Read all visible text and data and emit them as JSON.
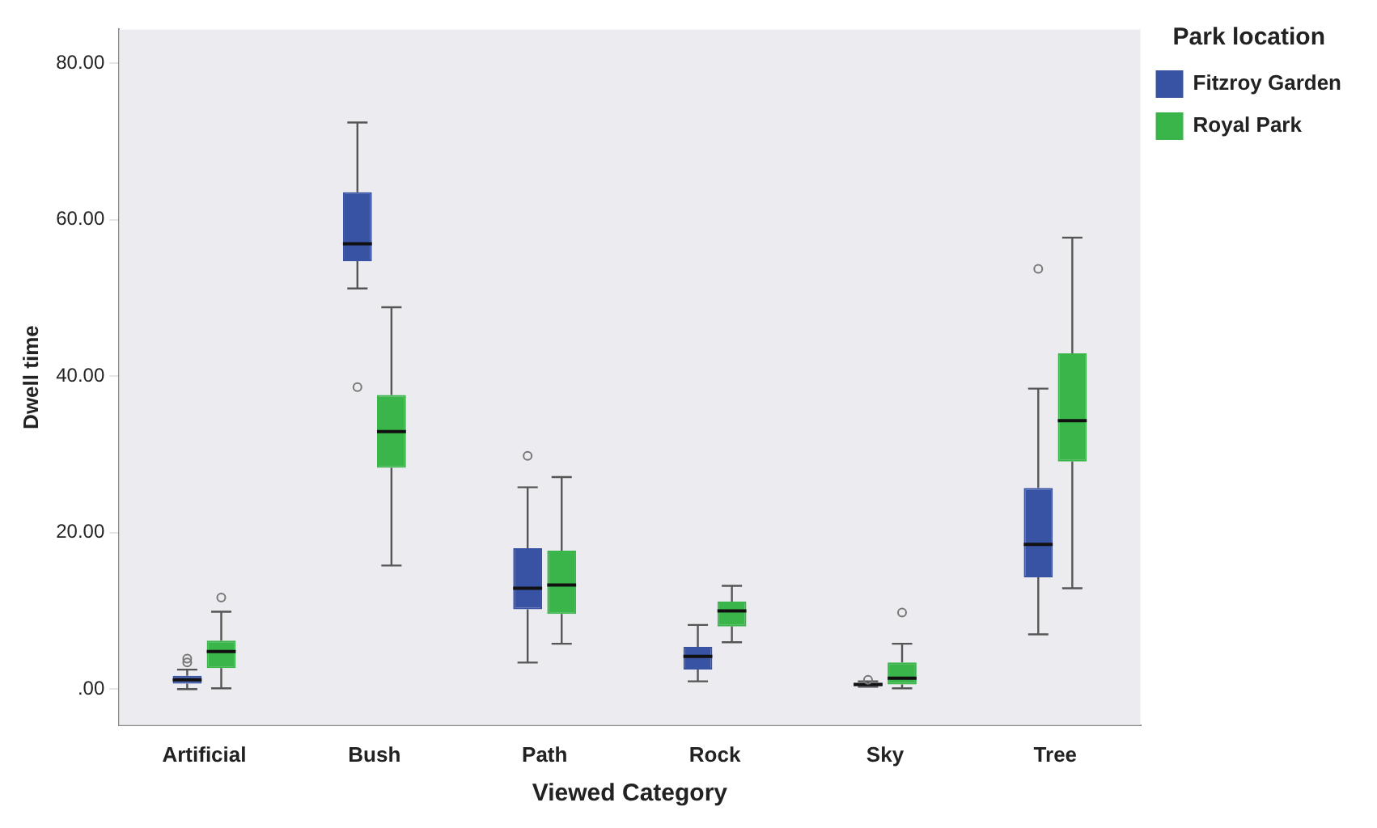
{
  "chart_data": {
    "type": "box",
    "xlabel": "Viewed Category",
    "ylabel": "Dwell time",
    "legend_title": "Park location",
    "legend": "top right",
    "grid": false,
    "categories": [
      "Artificial",
      "Bush",
      "Path",
      "Rock",
      "Sky",
      "Tree"
    ],
    "ylim": [
      -4.6,
      84.3
    ],
    "yticks": [
      {
        "value": 0,
        "label": ".00"
      },
      {
        "value": 20,
        "label": "20.00"
      },
      {
        "value": 40,
        "label": "40.00"
      },
      {
        "value": 60,
        "label": "60.00"
      },
      {
        "value": 80,
        "label": "80.00"
      }
    ],
    "series": [
      {
        "name": "Fitzroy Garden",
        "color": "#3953a4",
        "boxes": [
          {
            "low": 0,
            "q1": 0.7,
            "median": 1.2,
            "q3": 1.7,
            "high": 2.5,
            "outliers": [
              3.4,
              3.9
            ]
          },
          {
            "low": 51.2,
            "q1": 54.7,
            "median": 56.9,
            "q3": 63.5,
            "high": 72.4,
            "outliers": [
              38.6
            ]
          },
          {
            "low": 3.4,
            "q1": 10.2,
            "median": 12.9,
            "q3": 18.0,
            "high": 25.8,
            "outliers": [
              29.8
            ]
          },
          {
            "low": 1.0,
            "q1": 2.5,
            "median": 4.2,
            "q3": 5.4,
            "high": 8.2
          },
          {
            "low": 0.3,
            "q1": 0.4,
            "median": 0.6,
            "q3": 0.8,
            "high": 1.0,
            "outliers": [
              1.2
            ]
          },
          {
            "low": 7.0,
            "q1": 14.3,
            "median": 18.5,
            "q3": 25.7,
            "high": 38.4,
            "outliers": [
              53.7
            ]
          }
        ]
      },
      {
        "name": "Royal Park",
        "color": "#3ab54a",
        "boxes": [
          {
            "low": 0.1,
            "q1": 2.7,
            "median": 4.8,
            "q3": 6.2,
            "high": 9.9,
            "outliers": [
              11.7
            ]
          },
          {
            "low": 15.8,
            "q1": 28.3,
            "median": 32.9,
            "q3": 37.6,
            "high": 48.8
          },
          {
            "low": 5.8,
            "q1": 9.6,
            "median": 13.3,
            "q3": 17.7,
            "high": 27.1
          },
          {
            "low": 6.0,
            "q1": 8.0,
            "median": 10.0,
            "q3": 11.2,
            "high": 13.2
          },
          {
            "low": 0.1,
            "q1": 0.6,
            "median": 1.4,
            "q3": 3.4,
            "high": 5.8,
            "outliers": [
              9.8
            ]
          },
          {
            "low": 12.9,
            "q1": 29.1,
            "median": 34.3,
            "q3": 42.9,
            "high": 57.7
          }
        ]
      }
    ]
  }
}
